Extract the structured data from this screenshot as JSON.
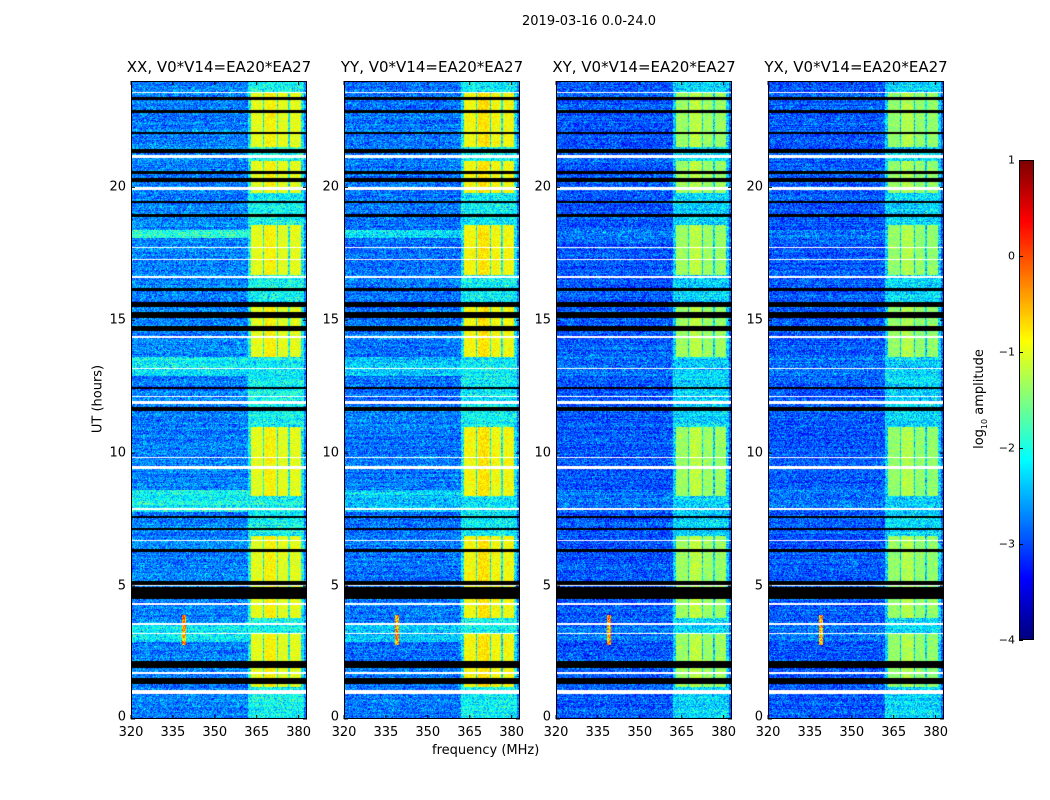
{
  "chart_data": {
    "type": "heatmap",
    "suptitle": "2019-03-16 0.0-24.0",
    "xlabel": "frequency (MHz)",
    "ylabel": "UT (hours)",
    "xlim": [
      320,
      383
    ],
    "ylim": [
      0,
      24
    ],
    "xticks": [
      320,
      335,
      350,
      365,
      380
    ],
    "yticks": [
      0,
      5,
      10,
      15,
      20
    ],
    "colorbar": {
      "label_prefix": "log",
      "label_sub": "10",
      "label_suffix": " amplitude",
      "range": [
        -4,
        1
      ],
      "ticks": [
        -4,
        -3,
        -2,
        -1,
        0,
        1
      ],
      "tick_labels": [
        "−4",
        "−3",
        "−2",
        "−1",
        "0",
        "1"
      ],
      "colormap": "jet"
    },
    "panels": [
      {
        "title": "XX, V0*V14=EA20*EA27",
        "background": -2.75,
        "band": -1.0,
        "segment_scale": 1.0
      },
      {
        "title": "YY, V0*V14=EA20*EA27",
        "background": -2.8,
        "band": -0.9,
        "segment_scale": 0.6
      },
      {
        "title": "XY, V0*V14=EA20*EA27",
        "background": -2.95,
        "band": -1.35,
        "segment_scale": 0.2
      },
      {
        "title": "YX, V0*V14=EA20*EA27",
        "background": -2.95,
        "band": -1.4,
        "segment_scale": 0.2
      }
    ],
    "flagged_hours": [
      [
        1.3,
        1.55
      ],
      [
        1.9,
        2.2
      ],
      [
        4.5,
        4.95
      ],
      [
        5.05,
        5.2
      ],
      [
        6.3,
        6.4
      ],
      [
        7.1,
        7.2
      ],
      [
        7.55,
        7.65
      ],
      [
        11.6,
        11.75
      ],
      [
        12.4,
        12.5
      ],
      [
        14.6,
        14.8
      ],
      [
        15.1,
        15.3
      ],
      [
        15.5,
        15.7
      ],
      [
        16.1,
        16.2
      ],
      [
        18.9,
        19.0
      ],
      [
        19.4,
        19.5
      ],
      [
        20.2,
        20.35
      ],
      [
        20.5,
        20.6
      ],
      [
        21.3,
        21.45
      ],
      [
        22.0,
        22.1
      ],
      [
        22.8,
        22.9
      ],
      [
        23.3,
        23.4
      ]
    ],
    "gap_hours": [
      [
        0.95,
        1.1
      ],
      [
        1.7,
        1.75
      ],
      [
        3.2,
        3.25
      ],
      [
        3.55,
        3.6
      ],
      [
        4.3,
        4.35
      ],
      [
        5.0,
        5.05
      ],
      [
        6.7,
        6.75
      ],
      [
        7.85,
        7.95
      ],
      [
        9.4,
        9.5
      ],
      [
        9.8,
        9.85
      ],
      [
        11.85,
        11.95
      ],
      [
        12.1,
        12.15
      ],
      [
        13.15,
        13.2
      ],
      [
        14.35,
        14.4
      ],
      [
        16.6,
        16.65
      ],
      [
        17.25,
        17.3
      ],
      [
        17.7,
        17.75
      ],
      [
        19.9,
        20.0
      ],
      [
        21.1,
        21.2
      ],
      [
        23.55,
        23.6
      ]
    ],
    "rfi_channels_mhz": [
      [
        363,
        367.3
      ],
      [
        367.7,
        372.3
      ],
      [
        372.7,
        376.3
      ],
      [
        377,
        381
      ]
    ],
    "rfi_active_hours": [
      [
        1.2,
        3.2
      ],
      [
        3.8,
        6.9
      ],
      [
        8.4,
        11.0
      ],
      [
        13.6,
        15.6
      ],
      [
        16.7,
        18.6
      ],
      [
        19.8,
        21.0
      ],
      [
        21.5,
        23.6
      ]
    ],
    "bright_segments": [
      {
        "hours": [
          7.8,
          8.6
        ],
        "level": -2.1
      },
      {
        "hours": [
          12.9,
          13.6
        ],
        "level": -2.1
      },
      {
        "hours": [
          18.1,
          18.4
        ],
        "level": -1.9
      },
      {
        "hours": [
          2.9,
          3.6
        ],
        "level": -2.2
      }
    ],
    "rfi_spike": {
      "freq_mhz": 339,
      "hours": [
        2.8,
        3.9
      ],
      "level": 0.3
    }
  }
}
